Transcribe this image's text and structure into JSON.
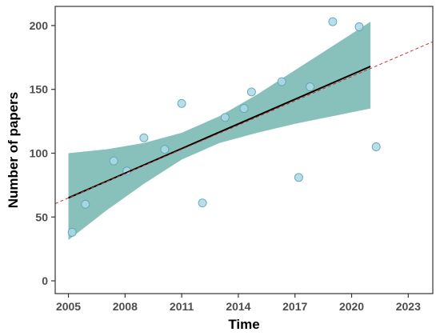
{
  "chart_data": {
    "type": "scatter",
    "title": "",
    "xlabel": "Time",
    "ylabel": "Number of papers",
    "xlim": [
      2004.3,
      2024.3
    ],
    "ylim": [
      -10,
      215
    ],
    "xticks": [
      2005,
      2008,
      2011,
      2014,
      2017,
      2020,
      2023
    ],
    "yticks": [
      0,
      50,
      100,
      150,
      200
    ],
    "xtick_labels": [
      "2005",
      "2008",
      "2011",
      "2014",
      "2017",
      "2020",
      "2023"
    ],
    "ytick_labels": [
      "0",
      "50",
      "100",
      "150",
      "200"
    ],
    "grid": false,
    "legend": "none",
    "points": {
      "x": [
        2005.2,
        2005.9,
        2007.4,
        2008.1,
        2009.0,
        2010.1,
        2011.0,
        2012.1,
        2013.3,
        2014.3,
        2014.7,
        2016.3,
        2017.2,
        2017.8,
        2019.0,
        2020.4,
        2021.3
      ],
      "y": [
        38,
        60,
        94,
        86,
        112,
        103,
        139,
        61,
        128,
        135,
        148,
        156,
        81,
        152,
        203,
        199,
        105
      ]
    },
    "fit_line": {
      "x": [
        2005.0,
        2021.0
      ],
      "y": [
        65,
        168
      ]
    },
    "extrapolation_line": {
      "x": [
        2004.3,
        2024.3
      ],
      "y": [
        60.5,
        187.3
      ]
    },
    "confidence_band": {
      "x": [
        2005.0,
        2007.0,
        2009.0,
        2011.0,
        2013.0,
        2015.0,
        2017.0,
        2019.0,
        2021.0
      ],
      "upper": [
        100,
        103,
        108,
        116,
        129,
        146,
        165,
        184,
        203
      ],
      "lower": [
        32,
        55,
        76,
        95,
        108,
        116,
        123,
        129,
        135
      ]
    },
    "colors": {
      "point_fill": "#add8e6",
      "point_stroke": "#5fa5b5",
      "band": "#56a69e",
      "fit": "#000000",
      "extrapolation": "#cc3333"
    }
  }
}
